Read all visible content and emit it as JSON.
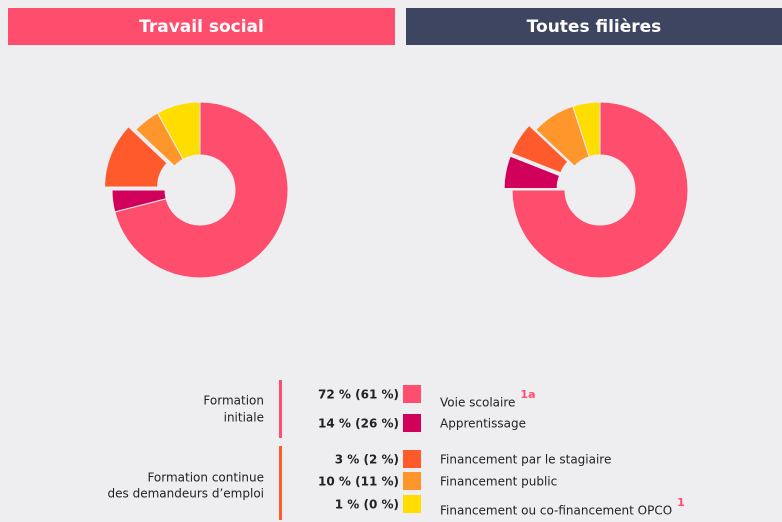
{
  "chart_data": [
    {
      "type": "pie",
      "title": "Travail social",
      "title_color": "#ff4d6d",
      "donut": true,
      "values": [
        71,
        4,
        12,
        5,
        8
      ],
      "colors": [
        "#ff4d6d",
        "#d1005a",
        "#ff5a2b",
        "#ff962b",
        "#ffdd00"
      ],
      "explode": [
        false,
        false,
        true,
        false,
        false
      ]
    },
    {
      "type": "pie",
      "title": "Toutes filières",
      "title_color": "#3d4560",
      "donut": true,
      "values": [
        75,
        6,
        6,
        8,
        5
      ],
      "colors": [
        "#ff4d6d",
        "#d1005a",
        "#ff5a2b",
        "#ff962b",
        "#ffdd00"
      ],
      "explode": [
        false,
        true,
        true,
        false,
        false
      ]
    }
  ],
  "legend": {
    "groups": [
      {
        "label": [
          "Formation",
          "initiale"
        ],
        "color": "#ff4d6d",
        "items": [
          {
            "value_label": "72 % (61 %)",
            "label": "Voie scolaire",
            "note": "1a"
          },
          {
            "value_label": "14 % (26 %)",
            "label": "Apprentissage"
          }
        ]
      },
      {
        "label": [
          "Formation continue",
          "des demandeurs d’emploi"
        ],
        "color": "#ff5a2b",
        "items": [
          {
            "value_label": "3 % (2 %)",
            "label": "Financement par le stagiaire"
          },
          {
            "value_label": "10 % (11 %)",
            "label": "Financement public"
          },
          {
            "value_label": "1 % (0 %)",
            "label": "Financement ou co-financement OPCO",
            "note": "1"
          }
        ]
      }
    ]
  }
}
